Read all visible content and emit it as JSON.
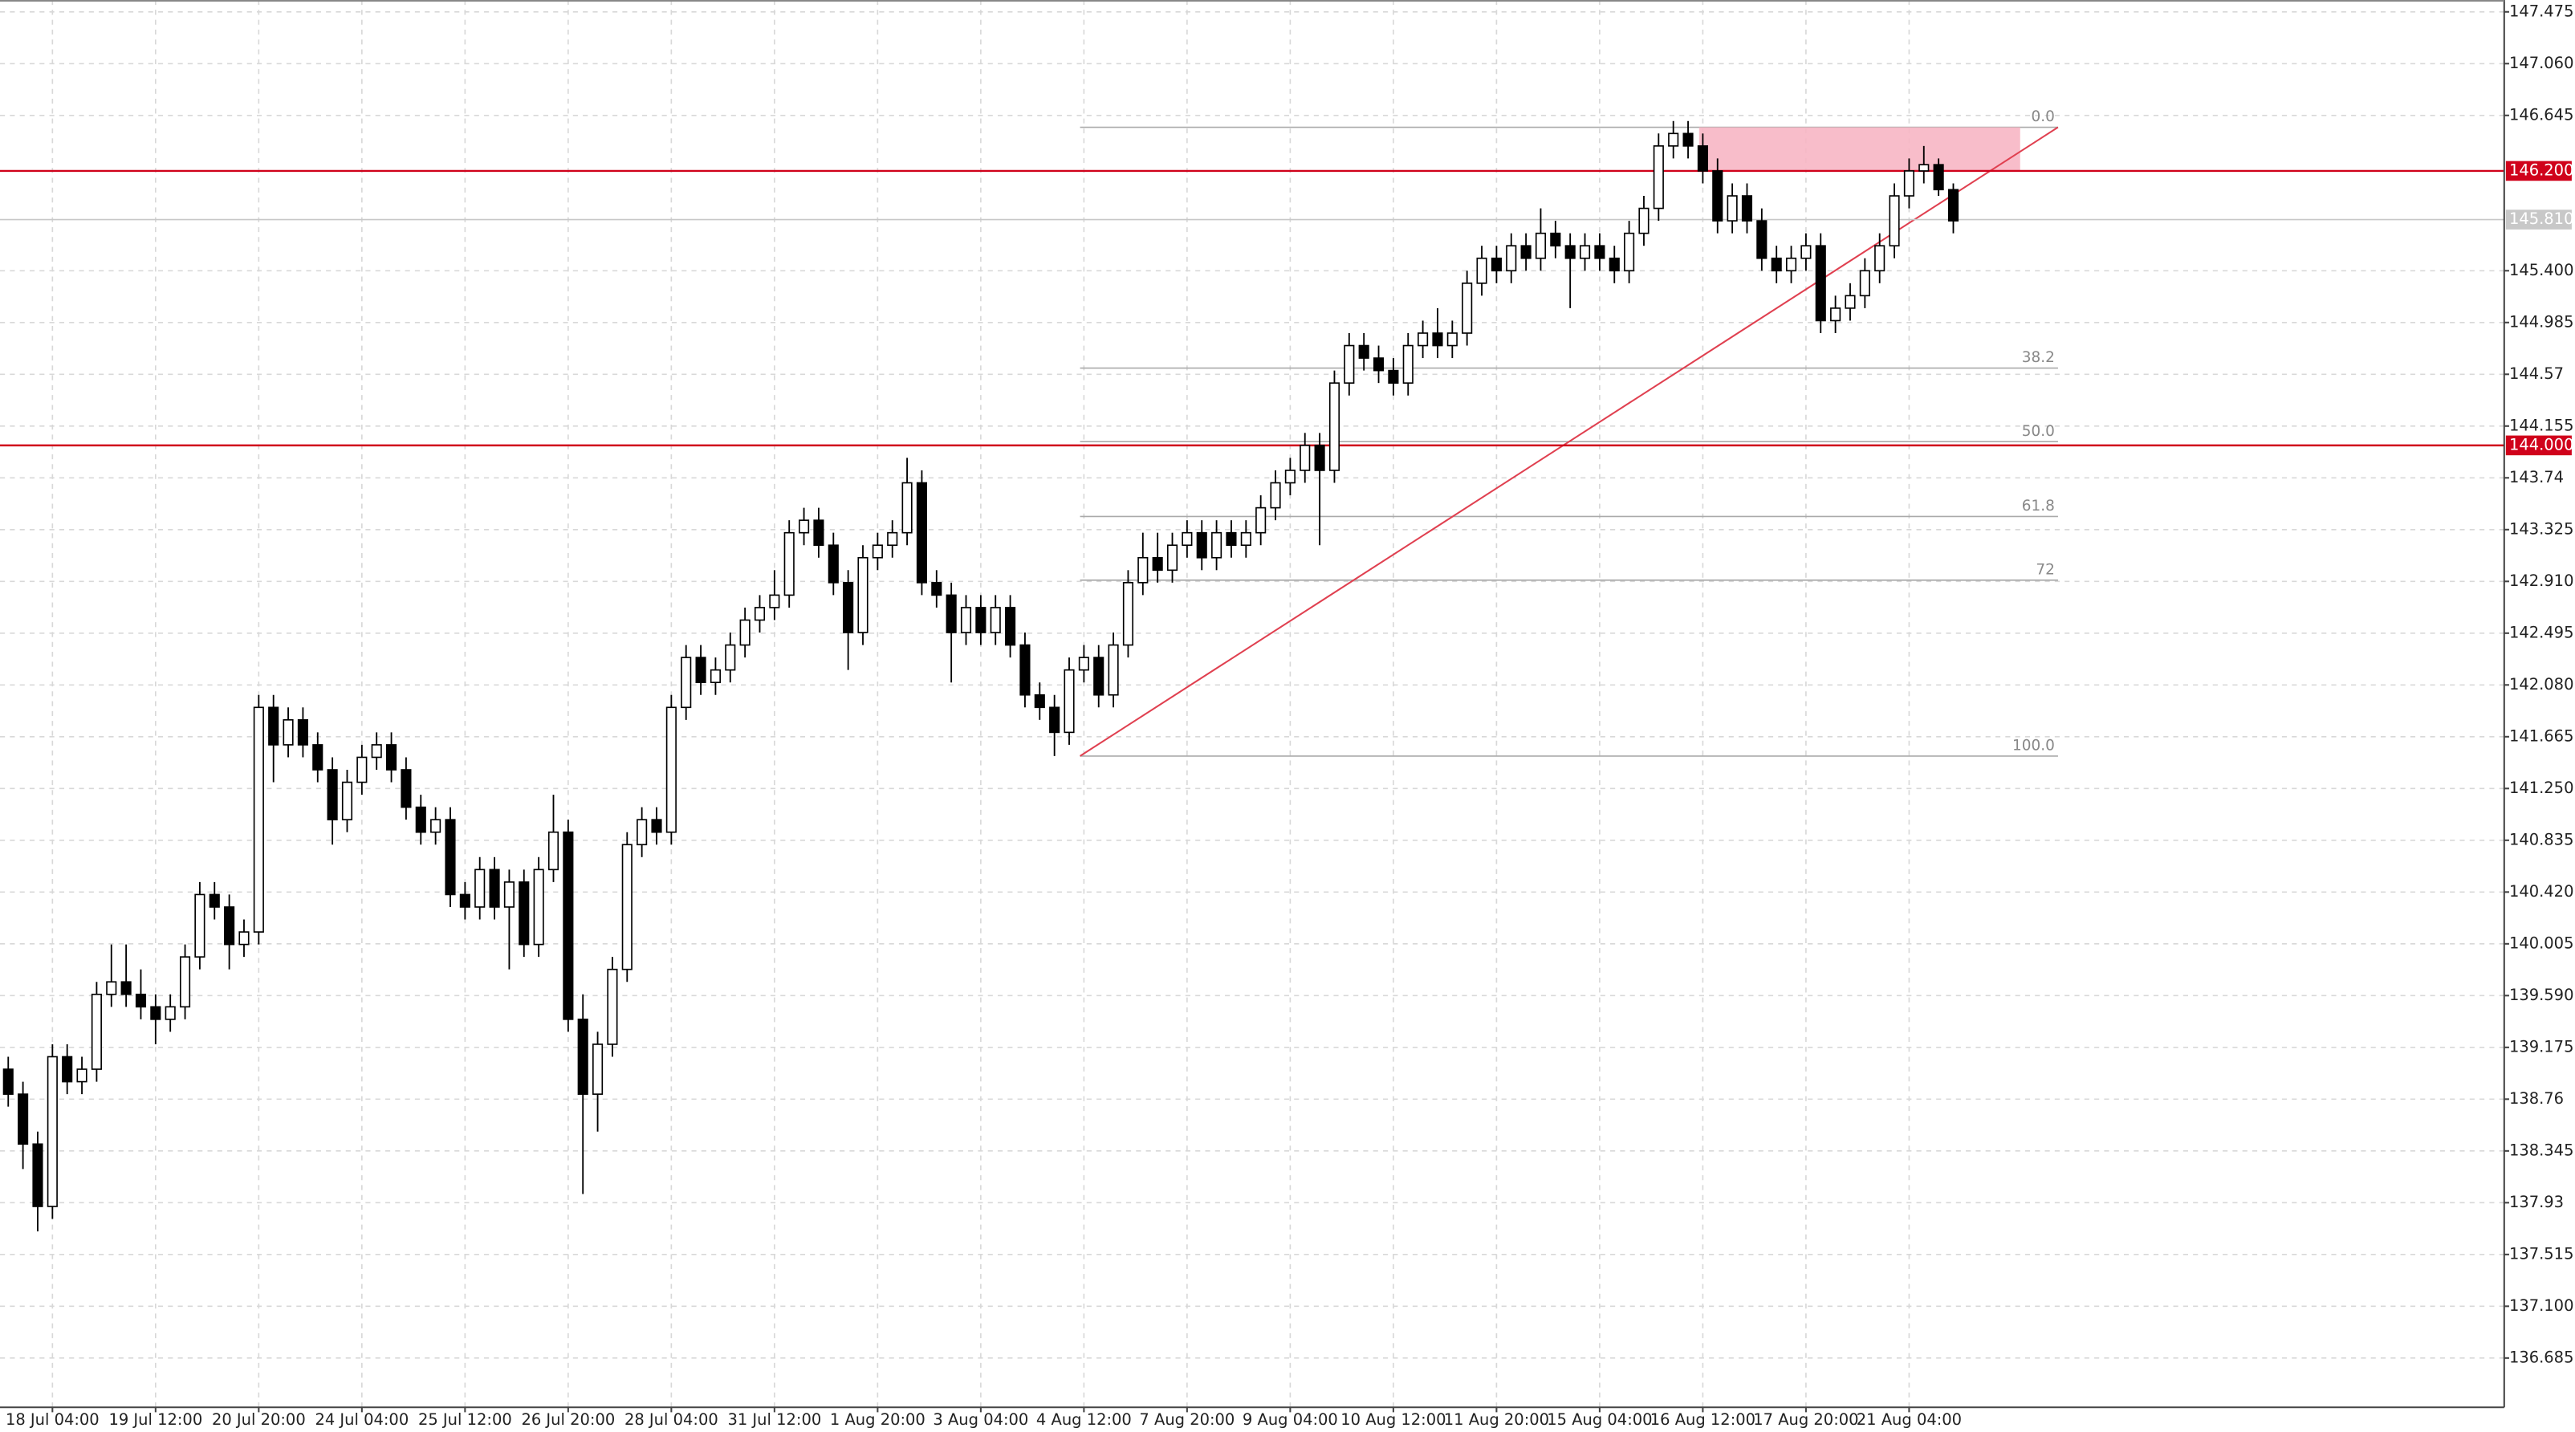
{
  "chart_data": {
    "type": "candlestick",
    "categories": [
      null,
      null,
      null,
      "18 Jul 04:00",
      null,
      null,
      null,
      null,
      null,
      null,
      "19 Jul 12:00",
      null,
      null,
      null,
      null,
      null,
      null,
      "20 Jul 20:00",
      null,
      null,
      null,
      null,
      null,
      null,
      "24 Jul 04:00",
      null,
      null,
      null,
      null,
      null,
      null,
      "25 Jul 12:00",
      null,
      null,
      null,
      null,
      null,
      null,
      "26 Jul 20:00",
      null,
      null,
      null,
      null,
      null,
      null,
      "28 Jul 04:00",
      null,
      null,
      null,
      null,
      null,
      null,
      "31 Jul 12:00",
      null,
      null,
      null,
      null,
      null,
      null,
      "1 Aug 20:00",
      null,
      null,
      null,
      null,
      null,
      null,
      "3 Aug 04:00",
      null,
      null,
      null,
      null,
      null,
      null,
      "4 Aug 12:00",
      null,
      null,
      null,
      null,
      null,
      null,
      "7 Aug 20:00",
      null,
      null,
      null,
      null,
      null,
      null,
      "9 Aug 04:00",
      null,
      null,
      null,
      null,
      null,
      null,
      "10 Aug 12:00",
      null,
      null,
      null,
      null,
      null,
      null,
      "11 Aug 20:00",
      null,
      null,
      null,
      null,
      null,
      null,
      "15 Aug 04:00",
      null,
      null,
      null,
      null,
      null,
      null,
      "16 Aug 12:00",
      null,
      null,
      null,
      null,
      null,
      null,
      "17 Aug 20:00",
      null,
      null,
      null,
      null,
      null,
      null,
      "21 Aug 04:00",
      null,
      null,
      null
    ],
    "ohlc": [
      [
        139.0,
        139.1,
        138.7,
        138.8
      ],
      [
        138.8,
        138.9,
        138.2,
        138.4
      ],
      [
        138.4,
        138.5,
        137.7,
        137.9
      ],
      [
        137.9,
        139.2,
        137.8,
        139.1
      ],
      [
        139.1,
        139.2,
        138.8,
        138.9
      ],
      [
        138.9,
        139.1,
        138.8,
        139.0
      ],
      [
        139.0,
        139.7,
        138.9,
        139.6
      ],
      [
        139.6,
        140.0,
        139.5,
        139.7
      ],
      [
        139.7,
        140.0,
        139.5,
        139.6
      ],
      [
        139.6,
        139.8,
        139.4,
        139.5
      ],
      [
        139.5,
        139.6,
        139.2,
        139.4
      ],
      [
        139.4,
        139.6,
        139.3,
        139.5
      ],
      [
        139.5,
        140.0,
        139.4,
        139.9
      ],
      [
        139.9,
        140.5,
        139.8,
        140.4
      ],
      [
        140.4,
        140.5,
        140.2,
        140.3
      ],
      [
        140.3,
        140.4,
        139.8,
        140.0
      ],
      [
        140.0,
        140.2,
        139.9,
        140.1
      ],
      [
        140.1,
        142.0,
        140.0,
        141.9
      ],
      [
        141.9,
        142.0,
        141.3,
        141.6
      ],
      [
        141.6,
        141.9,
        141.5,
        141.8
      ],
      [
        141.8,
        141.9,
        141.5,
        141.6
      ],
      [
        141.6,
        141.7,
        141.3,
        141.4
      ],
      [
        141.4,
        141.5,
        140.8,
        141.0
      ],
      [
        141.0,
        141.4,
        140.9,
        141.3
      ],
      [
        141.3,
        141.6,
        141.2,
        141.5
      ],
      [
        141.5,
        141.7,
        141.4,
        141.6
      ],
      [
        141.6,
        141.7,
        141.3,
        141.4
      ],
      [
        141.4,
        141.5,
        141.0,
        141.1
      ],
      [
        141.1,
        141.2,
        140.8,
        140.9
      ],
      [
        140.9,
        141.1,
        140.8,
        141.0
      ],
      [
        141.0,
        141.1,
        140.3,
        140.4
      ],
      [
        140.4,
        140.5,
        140.2,
        140.3
      ],
      [
        140.3,
        140.7,
        140.2,
        140.6
      ],
      [
        140.6,
        140.7,
        140.2,
        140.3
      ],
      [
        140.3,
        140.6,
        139.8,
        140.5
      ],
      [
        140.5,
        140.6,
        139.9,
        140.0
      ],
      [
        140.0,
        140.7,
        139.9,
        140.6
      ],
      [
        140.6,
        141.2,
        140.5,
        140.9
      ],
      [
        140.9,
        141.0,
        139.3,
        139.4
      ],
      [
        139.4,
        139.6,
        138.0,
        138.8
      ],
      [
        138.8,
        139.3,
        138.5,
        139.2
      ],
      [
        139.2,
        139.9,
        139.1,
        139.8
      ],
      [
        139.8,
        140.9,
        139.7,
        140.8
      ],
      [
        140.8,
        141.1,
        140.7,
        141.0
      ],
      [
        141.0,
        141.1,
        140.8,
        140.9
      ],
      [
        140.9,
        142.0,
        140.8,
        141.9
      ],
      [
        141.9,
        142.4,
        141.8,
        142.3
      ],
      [
        142.3,
        142.4,
        142.0,
        142.1
      ],
      [
        142.1,
        142.3,
        142.0,
        142.2
      ],
      [
        142.2,
        142.5,
        142.1,
        142.4
      ],
      [
        142.4,
        142.7,
        142.3,
        142.6
      ],
      [
        142.6,
        142.8,
        142.5,
        142.7
      ],
      [
        142.7,
        143.0,
        142.6,
        142.8
      ],
      [
        142.8,
        143.4,
        142.7,
        143.3
      ],
      [
        143.3,
        143.5,
        143.2,
        143.4
      ],
      [
        143.4,
        143.5,
        143.1,
        143.2
      ],
      [
        143.2,
        143.3,
        142.8,
        142.9
      ],
      [
        142.9,
        143.0,
        142.2,
        142.5
      ],
      [
        142.5,
        143.2,
        142.4,
        143.1
      ],
      [
        143.1,
        143.3,
        143.0,
        143.2
      ],
      [
        143.2,
        143.4,
        143.1,
        143.3
      ],
      [
        143.3,
        143.9,
        143.2,
        143.7
      ],
      [
        143.7,
        143.8,
        142.8,
        142.9
      ],
      [
        142.9,
        143.0,
        142.7,
        142.8
      ],
      [
        142.8,
        142.9,
        142.1,
        142.5
      ],
      [
        142.5,
        142.8,
        142.4,
        142.7
      ],
      [
        142.7,
        142.8,
        142.4,
        142.5
      ],
      [
        142.5,
        142.8,
        142.4,
        142.7
      ],
      [
        142.7,
        142.8,
        142.3,
        142.4
      ],
      [
        142.4,
        142.5,
        141.9,
        142.0
      ],
      [
        142.0,
        142.1,
        141.8,
        141.9
      ],
      [
        141.9,
        142.0,
        141.51,
        141.7
      ],
      [
        141.7,
        142.3,
        141.6,
        142.2
      ],
      [
        142.2,
        142.4,
        142.1,
        142.3
      ],
      [
        142.3,
        142.4,
        141.9,
        142.0
      ],
      [
        142.0,
        142.5,
        141.9,
        142.4
      ],
      [
        142.4,
        143.0,
        142.3,
        142.9
      ],
      [
        142.9,
        143.3,
        142.8,
        143.1
      ],
      [
        143.1,
        143.3,
        142.9,
        143.0
      ],
      [
        143.0,
        143.3,
        142.9,
        143.2
      ],
      [
        143.2,
        143.4,
        143.1,
        143.3
      ],
      [
        143.3,
        143.4,
        143.0,
        143.1
      ],
      [
        143.1,
        143.4,
        143.0,
        143.3
      ],
      [
        143.3,
        143.4,
        143.1,
        143.2
      ],
      [
        143.2,
        143.4,
        143.1,
        143.3
      ],
      [
        143.3,
        143.6,
        143.2,
        143.5
      ],
      [
        143.5,
        143.8,
        143.4,
        143.7
      ],
      [
        143.7,
        143.9,
        143.6,
        143.8
      ],
      [
        143.8,
        144.1,
        143.7,
        144.0
      ],
      [
        144.0,
        144.1,
        143.2,
        143.8
      ],
      [
        143.8,
        144.6,
        143.7,
        144.5
      ],
      [
        144.5,
        144.9,
        144.4,
        144.8
      ],
      [
        144.8,
        144.9,
        144.6,
        144.7
      ],
      [
        144.7,
        144.8,
        144.5,
        144.6
      ],
      [
        144.6,
        144.7,
        144.4,
        144.5
      ],
      [
        144.5,
        144.9,
        144.4,
        144.8
      ],
      [
        144.8,
        145.0,
        144.7,
        144.9
      ],
      [
        144.9,
        145.1,
        144.7,
        144.8
      ],
      [
        144.8,
        145.0,
        144.7,
        144.9
      ],
      [
        144.9,
        145.4,
        144.8,
        145.3
      ],
      [
        145.3,
        145.6,
        145.2,
        145.5
      ],
      [
        145.5,
        145.6,
        145.3,
        145.4
      ],
      [
        145.4,
        145.7,
        145.3,
        145.6
      ],
      [
        145.6,
        145.7,
        145.4,
        145.5
      ],
      [
        145.5,
        145.9,
        145.4,
        145.7
      ],
      [
        145.7,
        145.8,
        145.5,
        145.6
      ],
      [
        145.6,
        145.7,
        145.1,
        145.5
      ],
      [
        145.5,
        145.7,
        145.4,
        145.6
      ],
      [
        145.6,
        145.7,
        145.4,
        145.5
      ],
      [
        145.5,
        145.6,
        145.3,
        145.4
      ],
      [
        145.4,
        145.8,
        145.3,
        145.7
      ],
      [
        145.7,
        146.0,
        145.6,
        145.9
      ],
      [
        145.9,
        146.5,
        145.8,
        146.4
      ],
      [
        146.4,
        146.6,
        146.3,
        146.5
      ],
      [
        146.5,
        146.6,
        146.3,
        146.4
      ],
      [
        146.4,
        146.5,
        146.1,
        146.2
      ],
      [
        146.2,
        146.3,
        145.7,
        145.8
      ],
      [
        145.8,
        146.1,
        145.7,
        146.0
      ],
      [
        146.0,
        146.1,
        145.7,
        145.8
      ],
      [
        145.8,
        145.9,
        145.4,
        145.5
      ],
      [
        145.5,
        145.6,
        145.3,
        145.4
      ],
      [
        145.4,
        145.6,
        145.3,
        145.5
      ],
      [
        145.5,
        145.7,
        145.4,
        145.6
      ],
      [
        145.6,
        145.7,
        144.9,
        145.0
      ],
      [
        145.0,
        145.2,
        144.9,
        145.1
      ],
      [
        145.1,
        145.3,
        145.0,
        145.2
      ],
      [
        145.2,
        145.5,
        145.1,
        145.4
      ],
      [
        145.4,
        145.7,
        145.3,
        145.6
      ],
      [
        145.6,
        146.1,
        145.5,
        146.0
      ],
      [
        146.0,
        146.3,
        145.9,
        146.2
      ],
      [
        146.2,
        146.4,
        146.1,
        146.25
      ],
      [
        146.25,
        146.3,
        146.0,
        146.05
      ],
      [
        146.05,
        146.1,
        145.7,
        145.8
      ]
    ],
    "up_color": "#ffffff",
    "down_color": "#000000",
    "ylim": [
      136.29,
      147.57
    ],
    "yticks": [
      147.475,
      {
        "value": 147.06,
        "label": "147.060"
      },
      146.645,
      {
        "value": 145.4,
        "label": "145.400"
      },
      144.985,
      144.57,
      144.155,
      143.74,
      143.325,
      {
        "value": 142.91,
        "label": "142.910"
      },
      142.495,
      {
        "value": 142.08,
        "label": "142.080"
      },
      141.665,
      {
        "value": 141.25,
        "label": "141.250"
      },
      140.835,
      {
        "value": 140.42,
        "label": "140.420"
      },
      140.005,
      {
        "value": 139.59,
        "label": "139.590"
      },
      139.175,
      138.76,
      138.345,
      137.93,
      137.515,
      {
        "value": 137.1,
        "label": "137.100"
      },
      136.685
    ],
    "grid": true,
    "levels": [
      {
        "value": 146.2,
        "label": "146.200",
        "color": "#d0021b"
      },
      {
        "value": 144.0,
        "label": "144.000",
        "color": "#d0021b"
      }
    ],
    "current_price": {
      "value": 145.81,
      "label": "145.810",
      "color": "#c8c8c8"
    },
    "fib_levels": [
      {
        "value": 146.55,
        "label": "0.0"
      },
      {
        "value": 144.62,
        "label": "38.2"
      },
      {
        "value": 144.03,
        "label": "50.0"
      },
      {
        "value": 143.43,
        "label": "61.8"
      },
      {
        "value": 142.92,
        "label": "72"
      },
      {
        "value": 141.51,
        "label": "100.0"
      }
    ],
    "zone": {
      "from": 146.2,
      "to": 146.55,
      "color": "#f7b6c4"
    },
    "trendline_color": "#e04050"
  }
}
